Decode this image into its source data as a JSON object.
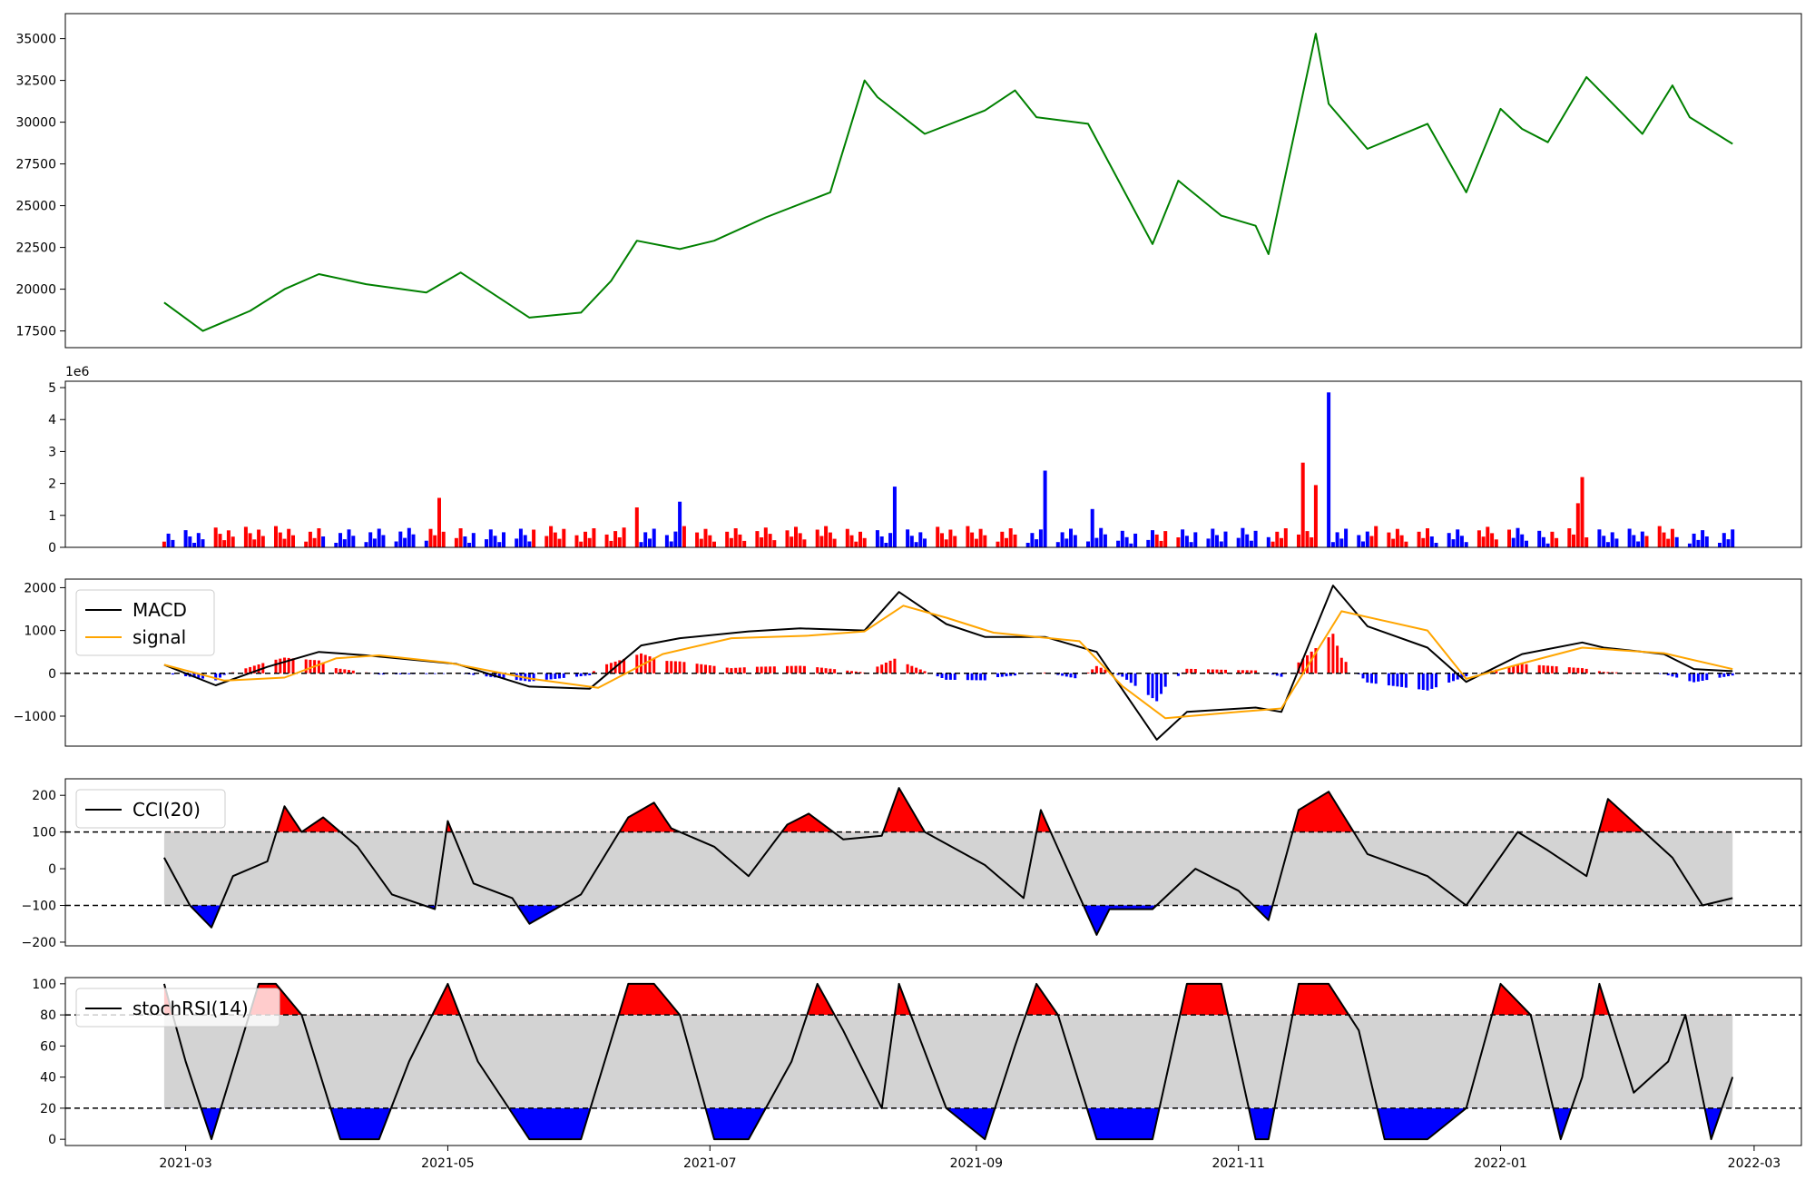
{
  "chart_data": [
    {
      "type": "line",
      "panel": "price",
      "color": "#008000",
      "ylim": [
        16500,
        36500
      ],
      "yticks": [
        17500,
        20000,
        22500,
        25000,
        27500,
        30000,
        32500,
        35000
      ],
      "ytick_labels": [
        "17500",
        "20000",
        "22500",
        "25000",
        "27500",
        "30000",
        "32500",
        "35000"
      ],
      "x": [
        "2021-02-24",
        "2021-03-05",
        "2021-03-16",
        "2021-03-24",
        "2021-04-01",
        "2021-04-12",
        "2021-04-26",
        "2021-05-04",
        "2021-05-20",
        "2021-06-01",
        "2021-06-08",
        "2021-06-14",
        "2021-06-24",
        "2021-07-02",
        "2021-07-14",
        "2021-07-29",
        "2021-08-06",
        "2021-08-09",
        "2021-08-20",
        "2021-09-03",
        "2021-09-10",
        "2021-09-15",
        "2021-09-27",
        "2021-10-12",
        "2021-10-18",
        "2021-10-28",
        "2021-11-05",
        "2021-11-08",
        "2021-11-19",
        "2021-11-22",
        "2021-12-01",
        "2021-12-15",
        "2021-12-24",
        "2022-01-01",
        "2022-01-06",
        "2022-01-12",
        "2022-01-21",
        "2022-02-03",
        "2022-02-10",
        "2022-02-14",
        "2022-02-24"
      ],
      "y": [
        19200,
        17500,
        18700,
        20000,
        20900,
        20300,
        19800,
        21000,
        18300,
        18600,
        20500,
        22900,
        22400,
        22900,
        24300,
        25800,
        32500,
        31500,
        29300,
        30700,
        31900,
        30300,
        29900,
        22700,
        26500,
        24400,
        23800,
        22100,
        35300,
        31100,
        28400,
        29900,
        25800,
        30800,
        29600,
        28800,
        32700,
        29300,
        32200,
        30300,
        28700
      ]
    },
    {
      "type": "bar",
      "panel": "volume",
      "offset_label": "1e6",
      "up_color": "#ff0000",
      "down_color": "#0000ff",
      "ylim": [
        0,
        5200000
      ],
      "yticks": [
        0,
        1000000,
        2000000,
        3000000,
        4000000,
        5000000
      ],
      "ytick_labels": [
        "0",
        "1",
        "2",
        "3",
        "4",
        "5"
      ],
      "peaks": [
        {
          "x": "2021-04-29",
          "value": 1550000
        },
        {
          "x": "2021-06-14",
          "value": 1250000
        },
        {
          "x": "2021-06-24",
          "value": 1430000
        },
        {
          "x": "2021-08-13",
          "value": 1900000
        },
        {
          "x": "2021-09-17",
          "value": 2400000
        },
        {
          "x": "2021-09-28",
          "value": 1200000
        },
        {
          "x": "2021-11-16",
          "value": 2650000
        },
        {
          "x": "2021-11-19",
          "value": 1950000
        },
        {
          "x": "2021-11-22",
          "value": 4850000
        },
        {
          "x": "2022-01-19",
          "value": 1380000
        },
        {
          "x": "2022-01-20",
          "value": 2200000
        }
      ]
    },
    {
      "type": "line",
      "panel": "macd",
      "ylim": [
        -1700,
        2200
      ],
      "yticks": [
        -1000,
        0,
        1000,
        2000
      ],
      "ytick_labels": [
        "−1000",
        "0",
        "1000",
        "2000"
      ],
      "legend": {
        "location": "upper-left"
      },
      "hist_positive_color": "#ff0000",
      "hist_negative_color": "#0000ff",
      "series": [
        {
          "name": "MACD",
          "color": "#000000",
          "x": [
            "2021-02-24",
            "2021-03-08",
            "2021-03-20",
            "2021-04-01",
            "2021-04-12",
            "2021-05-03",
            "2021-05-20",
            "2021-06-03",
            "2021-06-15",
            "2021-06-24",
            "2021-07-10",
            "2021-07-22",
            "2021-08-06",
            "2021-08-14",
            "2021-08-25",
            "2021-09-03",
            "2021-09-17",
            "2021-09-29",
            "2021-10-13",
            "2021-10-20",
            "2021-11-05",
            "2021-11-11",
            "2021-11-23",
            "2021-12-01",
            "2021-12-15",
            "2021-12-24",
            "2022-01-06",
            "2022-01-20",
            "2022-01-25",
            "2022-02-08",
            "2022-02-15",
            "2022-02-24"
          ],
          "y": [
            200,
            -280,
            150,
            500,
            420,
            220,
            -310,
            -360,
            650,
            820,
            980,
            1050,
            1000,
            1900,
            1150,
            850,
            850,
            500,
            -1550,
            -900,
            -800,
            -900,
            2050,
            1100,
            600,
            -200,
            450,
            720,
            600,
            450,
            100,
            50
          ]
        },
        {
          "name": "signal",
          "color": "#ffa500",
          "x": [
            "2021-02-24",
            "2021-03-10",
            "2021-03-24",
            "2021-04-05",
            "2021-04-15",
            "2021-05-01",
            "2021-05-20",
            "2021-06-05",
            "2021-06-20",
            "2021-07-06",
            "2021-07-24",
            "2021-08-06",
            "2021-08-15",
            "2021-08-25",
            "2021-09-05",
            "2021-09-25",
            "2021-10-05",
            "2021-10-15",
            "2021-11-01",
            "2021-11-11",
            "2021-11-25",
            "2021-12-15",
            "2021-12-24",
            "2022-01-06",
            "2022-01-20",
            "2022-02-08",
            "2022-02-24"
          ],
          "y": [
            200,
            -170,
            -100,
            350,
            420,
            250,
            -120,
            -340,
            450,
            820,
            880,
            980,
            1580,
            1300,
            950,
            750,
            -300,
            -1050,
            -900,
            -820,
            1450,
            1000,
            -130,
            230,
            600,
            470,
            100
          ]
        }
      ]
    },
    {
      "type": "line",
      "panel": "cci",
      "ylim": [
        -210,
        245
      ],
      "yticks": [
        -200,
        -100,
        0,
        100,
        200
      ],
      "ytick_labels": [
        "−200",
        "−100",
        "0",
        "100",
        "200"
      ],
      "levels": [
        100,
        -100
      ],
      "legend": {
        "location": "upper-left"
      },
      "series": [
        {
          "name": "CCI(20)",
          "color": "#000000",
          "x": [
            "2021-02-24",
            "2021-03-02",
            "2021-03-07",
            "2021-03-12",
            "2021-03-20",
            "2021-03-24",
            "2021-03-28",
            "2021-04-02",
            "2021-04-10",
            "2021-04-18",
            "2021-04-28",
            "2021-05-01",
            "2021-05-07",
            "2021-05-16",
            "2021-05-20",
            "2021-06-01",
            "2021-06-12",
            "2021-06-18",
            "2021-06-22",
            "2021-07-02",
            "2021-07-10",
            "2021-07-19",
            "2021-07-24",
            "2021-08-01",
            "2021-08-10",
            "2021-08-14",
            "2021-08-20",
            "2021-09-03",
            "2021-09-12",
            "2021-09-16",
            "2021-09-29",
            "2021-10-02",
            "2021-10-12",
            "2021-10-22",
            "2021-11-01",
            "2021-11-08",
            "2021-11-15",
            "2021-11-22",
            "2021-12-01",
            "2021-12-15",
            "2021-12-24",
            "2022-01-05",
            "2022-01-12",
            "2022-01-21",
            "2022-01-26",
            "2022-02-10",
            "2022-02-17",
            "2022-02-24"
          ],
          "y": [
            30,
            -100,
            -160,
            -20,
            20,
            170,
            100,
            140,
            60,
            -70,
            -110,
            130,
            -40,
            -80,
            -150,
            -70,
            140,
            180,
            110,
            60,
            -20,
            120,
            150,
            80,
            90,
            220,
            100,
            10,
            -80,
            160,
            -180,
            -110,
            -110,
            0,
            -60,
            -140,
            160,
            210,
            40,
            -20,
            -100,
            100,
            50,
            -20,
            190,
            30,
            -100,
            -80
          ]
        }
      ]
    },
    {
      "type": "line",
      "panel": "stochrsi",
      "ylim": [
        -4,
        104
      ],
      "yticks": [
        0,
        20,
        40,
        60,
        80,
        100
      ],
      "ytick_labels": [
        "0",
        "20",
        "40",
        "60",
        "80",
        "100"
      ],
      "levels": [
        80,
        20
      ],
      "legend": {
        "location": "upper-left"
      },
      "series": [
        {
          "name": "stochRSI(14)",
          "color": "#000000",
          "x": [
            "2021-02-24",
            "2021-03-01",
            "2021-03-07",
            "2021-03-18",
            "2021-03-22",
            "2021-03-28",
            "2021-04-06",
            "2021-04-15",
            "2021-04-22",
            "2021-05-01",
            "2021-05-08",
            "2021-05-20",
            "2021-06-01",
            "2021-06-12",
            "2021-06-18",
            "2021-06-24",
            "2021-07-02",
            "2021-07-10",
            "2021-07-20",
            "2021-07-26",
            "2021-08-01",
            "2021-08-10",
            "2021-08-14",
            "2021-08-25",
            "2021-09-03",
            "2021-09-10",
            "2021-09-15",
            "2021-09-20",
            "2021-09-29",
            "2021-10-03",
            "2021-10-12",
            "2021-10-20",
            "2021-10-28",
            "2021-11-05",
            "2021-11-08",
            "2021-11-15",
            "2021-11-22",
            "2021-11-29",
            "2021-12-05",
            "2021-12-15",
            "2021-12-24",
            "2022-01-01",
            "2022-01-08",
            "2022-01-15",
            "2022-01-20",
            "2022-01-24",
            "2022-02-01",
            "2022-02-09",
            "2022-02-13",
            "2022-02-19",
            "2022-02-24"
          ],
          "y": [
            100,
            50,
            0,
            100,
            100,
            80,
            0,
            0,
            50,
            100,
            50,
            0,
            0,
            100,
            100,
            80,
            0,
            0,
            50,
            100,
            70,
            20,
            100,
            20,
            0,
            60,
            100,
            80,
            0,
            0,
            0,
            100,
            100,
            0,
            0,
            100,
            100,
            70,
            0,
            0,
            20,
            100,
            80,
            0,
            40,
            100,
            30,
            50,
            80,
            0,
            40
          ]
        }
      ]
    }
  ],
  "x_axis": {
    "range": [
      "2021-02-01",
      "2022-03-12"
    ],
    "ticks": [
      "2021-03-01",
      "2021-05-01",
      "2021-07-01",
      "2021-09-01",
      "2021-11-01",
      "2022-01-01",
      "2022-03-01"
    ],
    "tick_labels": [
      "2021-03",
      "2021-05",
      "2021-07",
      "2021-09",
      "2021-11",
      "2022-01",
      "2022-03"
    ]
  },
  "threshold_colors": {
    "above": "#ff0000",
    "below": "#0000ff",
    "band": "#d3d3d3"
  }
}
